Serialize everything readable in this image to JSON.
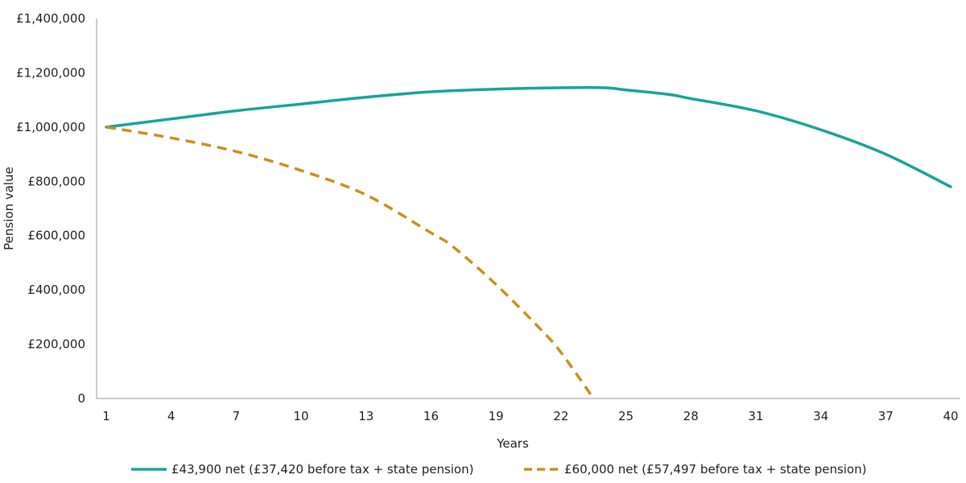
{
  "chart_data": {
    "type": "line",
    "title": "",
    "xlabel": "Years",
    "ylabel": "Pension value",
    "xlim": [
      1,
      40
    ],
    "ylim": [
      0,
      1400000
    ],
    "x_ticks": [
      1,
      4,
      7,
      10,
      13,
      16,
      19,
      22,
      25,
      28,
      31,
      34,
      37,
      40
    ],
    "y_ticks": [
      0,
      200000,
      400000,
      600000,
      800000,
      1000000,
      1200000,
      1400000
    ],
    "y_tick_labels": [
      "0",
      "£200,000",
      "£400,000",
      "£600,000",
      "£800,000",
      "£1,000,000",
      "£1,200,000",
      "£1,400,000"
    ],
    "grid": false,
    "legend_position": "bottom",
    "series": [
      {
        "name": "£43,900 net (£37,420 before tax + state pension)",
        "color": "#1aa39a",
        "dash": "solid",
        "x": [
          1,
          4,
          7,
          10,
          13,
          16,
          19,
          22,
          24,
          25,
          27,
          28,
          31,
          34,
          37,
          40
        ],
        "y": [
          1000000,
          1030000,
          1060000,
          1085000,
          1110000,
          1130000,
          1140000,
          1145000,
          1145000,
          1137000,
          1120000,
          1105000,
          1060000,
          990000,
          900000,
          780000
        ]
      },
      {
        "name": "£60,000 net (£57,497 before tax + state pension)",
        "color": "#c8911d",
        "dash": "dashed",
        "x": [
          1,
          4,
          7,
          10,
          13,
          16,
          17,
          19,
          21,
          22,
          23.5
        ],
        "y": [
          1000000,
          960000,
          910000,
          840000,
          750000,
          610000,
          560000,
          420000,
          260000,
          170000,
          0
        ]
      }
    ]
  }
}
